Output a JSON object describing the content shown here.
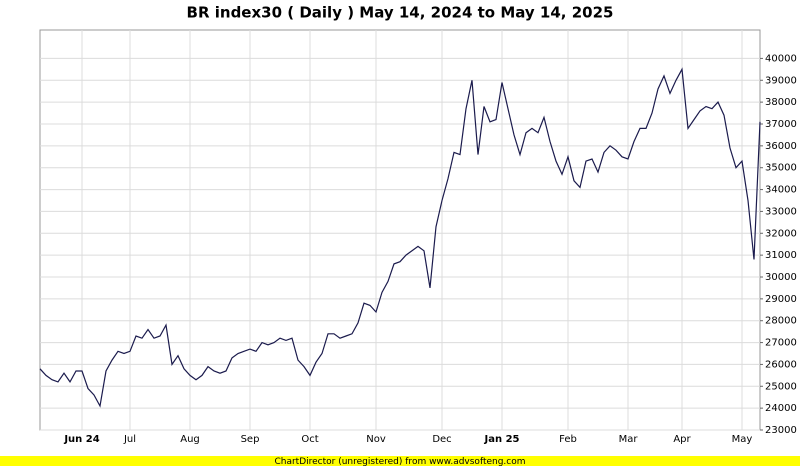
{
  "chart_data": {
    "type": "line",
    "title": "BR index30 ( Daily ) May 14, 2024 to May 14, 2025",
    "footer": "ChartDirector (unregistered) from www.advsofteng.com",
    "color": "#1b1b4d",
    "grid": true,
    "values": [
      25800,
      25500,
      25300,
      25200,
      25600,
      25200,
      25700,
      25700,
      24900,
      24600,
      24100,
      25700,
      26200,
      26600,
      26500,
      26600,
      27300,
      27200,
      27600,
      27200,
      27300,
      27800,
      26000,
      26400,
      25800,
      25500,
      25300,
      25500,
      25900,
      25700,
      25600,
      25700,
      26300,
      26500,
      26600,
      26700,
      26600,
      27000,
      26900,
      27000,
      27200,
      27100,
      27200,
      26200,
      25900,
      25500,
      26100,
      26500,
      27400,
      27400,
      27200,
      27300,
      27400,
      27900,
      28800,
      28700,
      28400,
      29300,
      29800,
      30600,
      30700,
      31000,
      31200,
      31400,
      31200,
      29500,
      32300,
      33500,
      34500,
      35700,
      35600,
      37700,
      39000,
      35600,
      37800,
      37100,
      37200,
      38900,
      37700,
      36500,
      35600,
      36600,
      36800,
      36600,
      37300,
      36200,
      35300,
      34700,
      35500,
      34400,
      34100,
      35300,
      35400,
      34800,
      35700,
      36000,
      35800,
      35500,
      35400,
      36200,
      36800,
      36800,
      37500,
      38600,
      39200,
      38400,
      39000,
      39500,
      36800,
      37200,
      37600,
      37800,
      37700,
      38000,
      37400,
      35900,
      35000,
      35300,
      33500,
      30800,
      37100
    ],
    "xlim": [
      0,
      120
    ],
    "xticks": [
      {
        "value": 7,
        "label": "Jun 24"
      },
      {
        "value": 15,
        "label": "Jul"
      },
      {
        "value": 25,
        "label": "Aug"
      },
      {
        "value": 35,
        "label": "Sep"
      },
      {
        "value": 45,
        "label": "Oct"
      },
      {
        "value": 56,
        "label": "Nov"
      },
      {
        "value": 67,
        "label": "Dec"
      },
      {
        "value": 77,
        "label": "Jan 25"
      },
      {
        "value": 88,
        "label": "Feb"
      },
      {
        "value": 98,
        "label": "Mar"
      },
      {
        "value": 107,
        "label": "Apr"
      },
      {
        "value": 117,
        "label": "May"
      }
    ],
    "ylim": [
      23000,
      41300
    ],
    "yticks": [
      23000,
      24000,
      25000,
      26000,
      27000,
      28000,
      29000,
      30000,
      31000,
      32000,
      33000,
      34000,
      35000,
      36000,
      37000,
      38000,
      39000,
      40000
    ]
  }
}
